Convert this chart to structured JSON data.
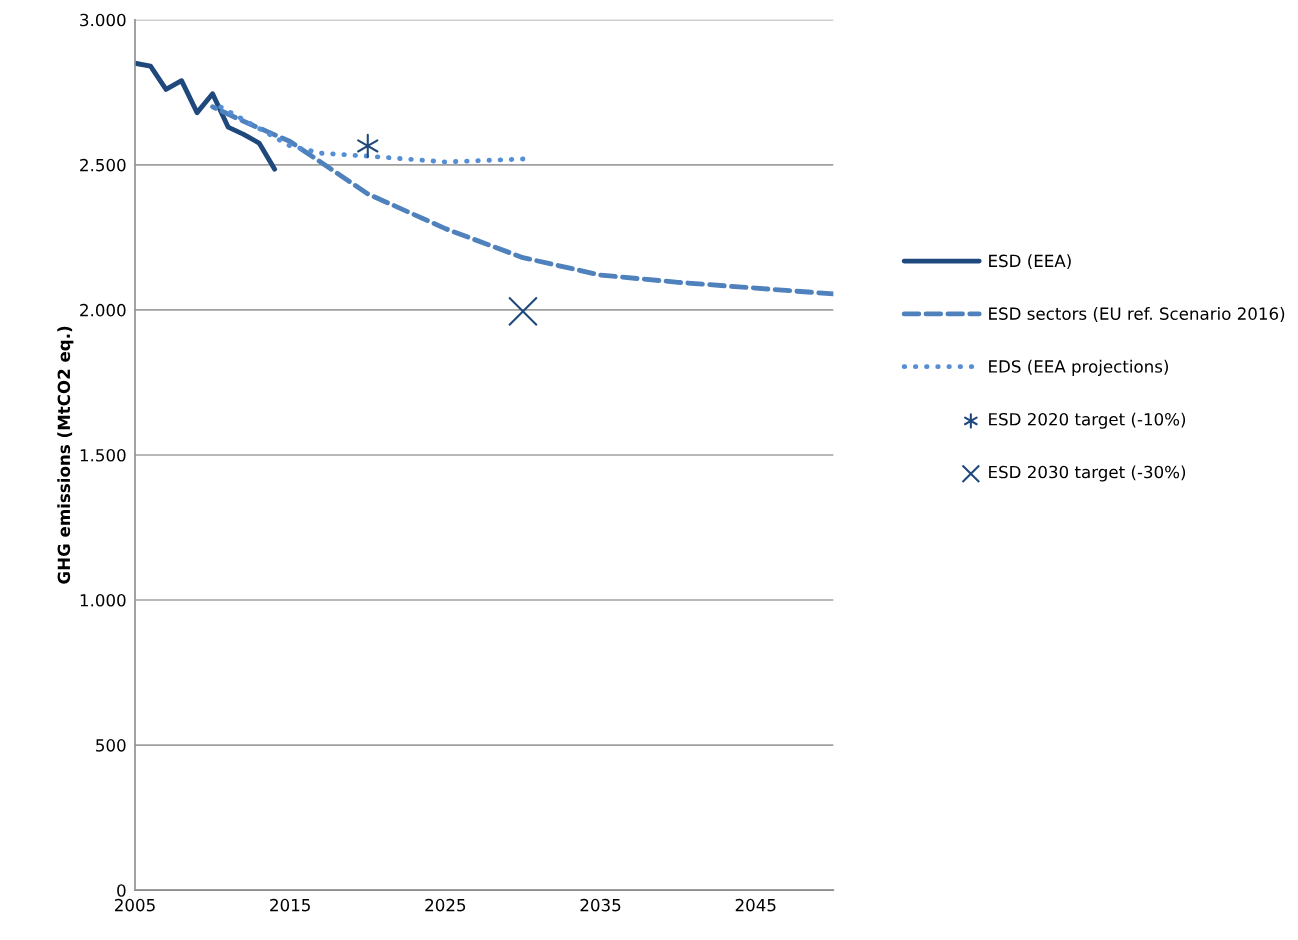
{
  "chart_data": {
    "type": "line",
    "ylabel": "GHG emissions (MtCO2 eq.)",
    "xlim": [
      2005,
      2050
    ],
    "xticks": [
      2005,
      2015,
      2025,
      2035,
      2045
    ],
    "ylim": [
      0,
      3000
    ],
    "yticks": [
      0,
      {
        "value": 500,
        "label": "500"
      },
      {
        "value": 1000,
        "label": "1.000"
      },
      {
        "value": 1500,
        "label": "1.500"
      },
      {
        "value": 2000,
        "label": "2.000"
      },
      {
        "value": 2500,
        "label": "2.500"
      },
      {
        "value": 3000,
        "label": "3.000"
      }
    ],
    "grid": "y",
    "legend": "right",
    "series": [
      {
        "name": "ESD (EEA)",
        "color": "#1f497d",
        "line_style": "solid",
        "marker": "none",
        "x": [
          2005,
          2006,
          2007,
          2008,
          2009,
          2010,
          2011,
          2012,
          2013,
          2014
        ],
        "values": [
          2850,
          2840,
          2760,
          2790,
          2680,
          2745,
          2630,
          2605,
          2575,
          2485
        ]
      },
      {
        "name": "ESD sectors (EU ref. Scenario 2016)",
        "color": "#4f81bd",
        "line_style": "dashed",
        "marker": "none",
        "x": [
          2010,
          2012,
          2015,
          2020,
          2025,
          2030,
          2035,
          2040,
          2045,
          2050
        ],
        "values": [
          2700,
          2650,
          2580,
          2400,
          2280,
          2180,
          2120,
          2095,
          2075,
          2055
        ]
      },
      {
        "name": "EDS (EEA projections)",
        "color": "#558ed5",
        "line_style": "dotted",
        "marker": "none",
        "x": [
          2010,
          2012,
          2015,
          2017,
          2020,
          2025,
          2030
        ],
        "values": [
          2715,
          2655,
          2565,
          2540,
          2530,
          2510,
          2520
        ]
      },
      {
        "name": "ESD 2020 target (-10%)",
        "type": "scatter",
        "color": "#1f497d",
        "x": [
          2020
        ],
        "values": [
          2565
        ]
      },
      {
        "name": "ESD 2030 target (-30%)",
        "type": "scatter",
        "color": "#1f497d",
        "marker": "cross",
        "x": [
          2030
        ],
        "values": [
          1995
        ]
      }
    ]
  }
}
